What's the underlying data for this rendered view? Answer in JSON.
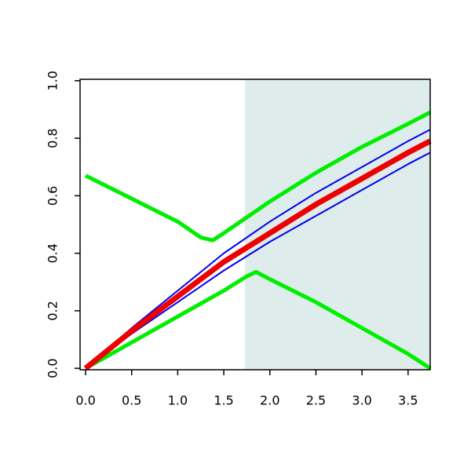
{
  "chart_data": {
    "type": "line",
    "xlim": [
      -0.06,
      3.74
    ],
    "ylim": [
      -0.005,
      1.005
    ],
    "xticks": [
      {
        "value": 0,
        "label": "0.0"
      },
      {
        "value": 0.5,
        "label": "0.5"
      },
      {
        "value": 1,
        "label": "1.0"
      },
      {
        "value": 1.5,
        "label": "1.5"
      },
      {
        "value": 2,
        "label": "2.0"
      },
      {
        "value": 2.5,
        "label": "2.5"
      },
      {
        "value": 3,
        "label": "3.0"
      },
      {
        "value": 3.5,
        "label": "3.5"
      }
    ],
    "yticks": [
      {
        "value": 0,
        "label": "0.0"
      },
      {
        "value": 0.2,
        "label": "0.2"
      },
      {
        "value": 0.4,
        "label": "0.4"
      },
      {
        "value": 0.6,
        "label": "0.6"
      },
      {
        "value": 0.8,
        "label": "0.8"
      },
      {
        "value": 1,
        "label": "1.0"
      }
    ],
    "shade": {
      "from": 1.73,
      "color": "#deeceb"
    },
    "series": [
      {
        "color": "#0000ee",
        "x": [
          0,
          0.5,
          1,
          1.5,
          2,
          2.5,
          3,
          3.5,
          3.74
        ],
        "values": [
          0,
          0.14,
          0.27,
          0.4,
          0.51,
          0.61,
          0.7,
          0.79,
          0.83
        ]
      },
      {
        "color": "#0000ee",
        "x": [
          0,
          0.5,
          1,
          1.5,
          2,
          2.5,
          3,
          3.5,
          3.74
        ],
        "values": [
          0,
          0.12,
          0.23,
          0.34,
          0.44,
          0.53,
          0.62,
          0.71,
          0.75
        ]
      },
      {
        "color": "#00ee00",
        "x": [
          0,
          0.5,
          1,
          1.25,
          1.38,
          1.5,
          2,
          2.5,
          3,
          3.5,
          3.74
        ],
        "values": [
          0.67,
          0.59,
          0.51,
          0.455,
          0.445,
          0.47,
          0.58,
          0.68,
          0.77,
          0.85,
          0.89
        ]
      },
      {
        "color": "#00ee00",
        "x": [
          0,
          0.5,
          1,
          1.5,
          1.75,
          1.85,
          2,
          2.5,
          3,
          3.5,
          3.74
        ],
        "values": [
          0,
          0.09,
          0.18,
          0.27,
          0.32,
          0.335,
          0.31,
          0.23,
          0.14,
          0.05,
          0
        ]
      },
      {
        "color": "#ee0000",
        "x": [
          0,
          0.5,
          1,
          1.5,
          2,
          2.5,
          3,
          3.5,
          3.74
        ],
        "values": [
          0,
          0.13,
          0.25,
          0.37,
          0.47,
          0.57,
          0.66,
          0.75,
          0.79
        ]
      }
    ]
  }
}
